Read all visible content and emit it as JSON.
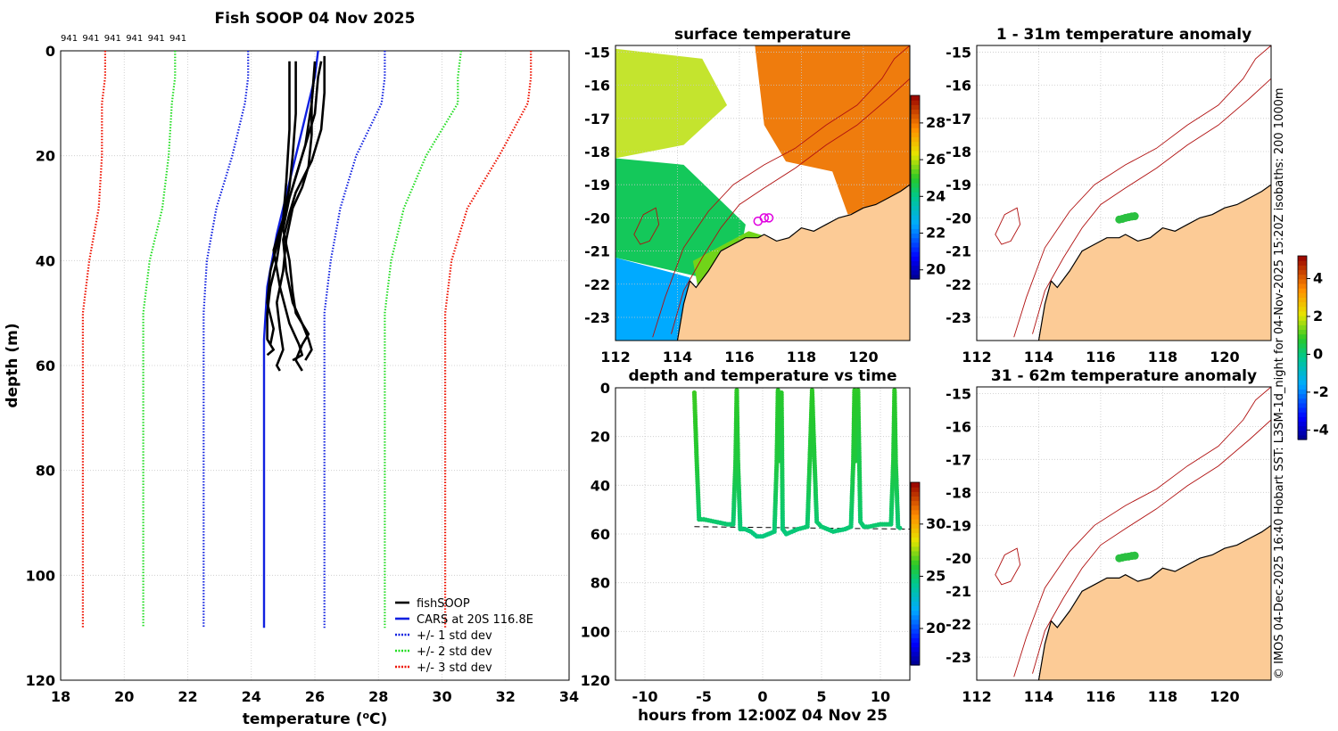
{
  "figure": {
    "credit": "© IMOS 04-Dec-2025 16:40 Hobart SST: L3SM-1d_night for 04-Nov-2025 15:20Z isobaths: 200  1000m"
  },
  "colors": {
    "land": "#fccb96",
    "coast": "#000000",
    "isobath": "#b01010",
    "grid": "#c8c8c8",
    "fishsoop": "#000000",
    "cars": "#1020e0",
    "std1": "#1020e0",
    "std2": "#22dd22",
    "std3": "#ee1100",
    "track": "#2ac040",
    "no_data": "#ffffff"
  },
  "chart_data": [
    {
      "id": "profile",
      "type": "line",
      "title": "Fish SOOP 04 Nov 2025",
      "xlabel": "temperature (°C)",
      "ylabel": "depth (m)",
      "xlim": [
        18,
        34
      ],
      "ylim": [
        0,
        120
      ],
      "y_reversed": true,
      "xticks": [
        18,
        20,
        22,
        24,
        26,
        28,
        30,
        32,
        34
      ],
      "yticks": [
        0,
        20,
        40,
        60,
        80,
        100,
        120
      ],
      "grid": true,
      "top_labels": [
        "941",
        "941",
        "941",
        "941",
        "941",
        "941"
      ],
      "legend_position": "bottom-right",
      "series": [
        {
          "name": "fishSOOP",
          "style": "solid",
          "color_key": "fishsoop",
          "casts": [
            {
              "temp": [
                25.2,
                25.2,
                25.1,
                25.0,
                24.8,
                24.6,
                24.5,
                24.5,
                24.6,
                24.7,
                24.5
              ],
              "depth": [
                2,
                15,
                25,
                32,
                40,
                45,
                50,
                55,
                56,
                57,
                58
              ]
            },
            {
              "temp": [
                25.4,
                25.4,
                25.3,
                25.2,
                25.0,
                24.7,
                24.9,
                25.2,
                25.5,
                25.6,
                25.3
              ],
              "depth": [
                2,
                12,
                20,
                26,
                32,
                38,
                45,
                52,
                56,
                58,
                59
              ]
            },
            {
              "temp": [
                26.0,
                25.9,
                25.9,
                25.8,
                25.6,
                25.3,
                25.1,
                25.0,
                24.8,
                24.9,
                25.0,
                24.8,
                24.9
              ],
              "depth": [
                2,
                10,
                16,
                22,
                26,
                30,
                36,
                42,
                48,
                53,
                57,
                60,
                61
              ]
            },
            {
              "temp": [
                26.2,
                26.1,
                26.0,
                25.5,
                25.2,
                25.0,
                25.2,
                25.3,
                25.4,
                25.8,
                25.6,
                25.4,
                25.6
              ],
              "depth": [
                2,
                5,
                12,
                22,
                28,
                34,
                40,
                46,
                50,
                54,
                56,
                59,
                61
              ]
            },
            {
              "temp": [
                26.3,
                26.3,
                26.2,
                25.9,
                25.4,
                25.2,
                25.0,
                25.1,
                25.3,
                25.6,
                25.8,
                25.9,
                25.7
              ],
              "depth": [
                1,
                8,
                15,
                21,
                27,
                31,
                36,
                42,
                48,
                52,
                55,
                57,
                59
              ]
            },
            {
              "temp": [
                26.0,
                25.9,
                25.7,
                25.4,
                25.1,
                24.9,
                24.6,
                24.5,
                24.7,
                24.6
              ],
              "depth": [
                3,
                10,
                18,
                24,
                30,
                35,
                42,
                48,
                53,
                56
              ]
            }
          ]
        },
        {
          "name": "CARS at 20S 116.8E",
          "style": "solid",
          "color_key": "cars",
          "temp": [
            26.1,
            26.0,
            25.6,
            25.2,
            24.8,
            24.5,
            24.4,
            24.4,
            24.4
          ],
          "depth": [
            0,
            5,
            15,
            25,
            35,
            45,
            55,
            60,
            110
          ]
        },
        {
          "name": "+/- 1 std dev",
          "style": "dotted",
          "color_key": "std1",
          "low": {
            "temp": [
              23.9,
              23.9,
              23.8,
              23.4,
              22.9,
              22.6,
              22.5,
              22.5,
              22.5
            ],
            "depth": [
              0,
              5,
              10,
              20,
              30,
              40,
              50,
              60,
              110
            ]
          },
          "high": {
            "temp": [
              28.2,
              28.2,
              28.1,
              27.3,
              26.8,
              26.5,
              26.3,
              26.3,
              26.3
            ],
            "depth": [
              0,
              5,
              10,
              20,
              30,
              40,
              50,
              60,
              110
            ]
          }
        },
        {
          "name": "+/- 2 std dev",
          "style": "dotted",
          "color_key": "std2",
          "low": {
            "temp": [
              21.6,
              21.6,
              21.5,
              21.4,
              21.2,
              20.8,
              20.6,
              20.6,
              20.6
            ],
            "depth": [
              0,
              5,
              10,
              20,
              30,
              40,
              50,
              60,
              110
            ]
          },
          "high": {
            "temp": [
              30.6,
              30.5,
              30.5,
              29.5,
              28.8,
              28.4,
              28.2,
              28.2,
              28.2
            ],
            "depth": [
              0,
              5,
              10,
              20,
              30,
              40,
              50,
              60,
              110
            ]
          }
        },
        {
          "name": "+/- 3 std dev",
          "style": "dotted",
          "color_key": "std3",
          "low": {
            "temp": [
              19.4,
              19.4,
              19.3,
              19.3,
              19.2,
              18.9,
              18.7,
              18.7,
              18.7
            ],
            "depth": [
              0,
              5,
              10,
              20,
              30,
              40,
              50,
              60,
              110
            ]
          },
          "high": {
            "temp": [
              32.8,
              32.8,
              32.7,
              31.8,
              30.8,
              30.3,
              30.1,
              30.1,
              30.1
            ],
            "depth": [
              0,
              5,
              10,
              20,
              30,
              40,
              50,
              60,
              110
            ]
          }
        }
      ]
    },
    {
      "id": "sst-map",
      "type": "heatmap",
      "title": "surface temperature",
      "xlim": [
        112,
        121.5
      ],
      "ylim": [
        -23.7,
        -14.8
      ],
      "xticks": [
        112,
        114,
        116,
        118,
        120
      ],
      "yticks": [
        -15,
        -16,
        -17,
        -18,
        -19,
        -20,
        -21,
        -22,
        -23
      ],
      "colorbar": {
        "min": 19.5,
        "max": 29.5,
        "ticks": [
          20,
          22,
          24,
          26,
          28
        ]
      },
      "sst_regions": [
        {
          "name": "north-east warm",
          "value": 28.0
        },
        {
          "name": "north-west",
          "value": 26.0
        },
        {
          "name": "south-west",
          "value": 24.5
        },
        {
          "name": "coastal shelf",
          "value": 25.5
        },
        {
          "name": "far south-west",
          "value": 22.5
        }
      ],
      "cast_markers": [
        {
          "lon": 116.6,
          "lat": -20.1
        },
        {
          "lon": 116.8,
          "lat": -20.0
        },
        {
          "lon": 116.95,
          "lat": -20.0
        }
      ]
    },
    {
      "id": "time-series",
      "type": "scatter",
      "title": "depth and temperature vs time",
      "xlabel": "hours from 12:00Z 04 Nov 25",
      "xlim": [
        -12.5,
        12.5
      ],
      "ylim": [
        0,
        120
      ],
      "y_reversed": true,
      "xticks": [
        -10,
        -5,
        0,
        5,
        10
      ],
      "yticks": [
        0,
        20,
        40,
        60,
        80,
        100,
        120
      ],
      "colorbar": {
        "min": 16.5,
        "max": 34,
        "ticks": [
          20,
          25,
          30
        ]
      },
      "bottom_depth_line": {
        "x": [
          -5.8,
          12.5
        ],
        "depth": [
          57,
          58
        ]
      },
      "track": {
        "hours": [
          -5.8,
          -5.6,
          -5.4,
          -5.0,
          -4.0,
          -3.0,
          -2.5,
          -2.3,
          -2.2,
          -2.1,
          -1.9,
          -1.5,
          -1.0,
          -0.5,
          0.0,
          0.5,
          1.0,
          1.2,
          1.3,
          1.5,
          1.6,
          1.7,
          2.0,
          3.0,
          3.8,
          4.0,
          4.2,
          4.4,
          4.6,
          5.0,
          6.0,
          7.0,
          7.5,
          7.7,
          7.8,
          7.9,
          8.1,
          8.3,
          8.6,
          9.0,
          10.0,
          10.9,
          11.1,
          11.2,
          11.3,
          11.5,
          11.8
        ],
        "depth": [
          2,
          30,
          54,
          54,
          55,
          56,
          56,
          30,
          1,
          30,
          58,
          58,
          59,
          61,
          61,
          60,
          59,
          30,
          1,
          30,
          2,
          58,
          60,
          58,
          57,
          30,
          1,
          30,
          55,
          57,
          59,
          58,
          57,
          30,
          1,
          30,
          1,
          55,
          57,
          57,
          56,
          56,
          30,
          1,
          30,
          57,
          58
        ],
        "temp": [
          26.5,
          26.0,
          25.0,
          25.0,
          24.9,
          24.8,
          24.8,
          25.8,
          26.3,
          25.8,
          24.7,
          24.7,
          24.6,
          24.5,
          24.5,
          24.6,
          24.7,
          25.8,
          26.2,
          25.8,
          26.2,
          24.7,
          24.6,
          24.7,
          24.8,
          25.8,
          26.3,
          25.8,
          24.9,
          24.8,
          24.7,
          24.7,
          24.8,
          25.8,
          26.3,
          25.8,
          26.3,
          24.9,
          24.8,
          24.8,
          24.9,
          24.9,
          25.8,
          26.3,
          25.8,
          24.8,
          24.7
        ]
      }
    },
    {
      "id": "anomaly-shallow",
      "type": "scatter",
      "title": "1 - 31m temperature anomaly",
      "xlim": [
        112,
        121.5
      ],
      "ylim": [
        -23.7,
        -14.8
      ],
      "xticks": [
        112,
        114,
        116,
        118,
        120
      ],
      "yticks": [
        -15,
        -16,
        -17,
        -18,
        -19,
        -20,
        -21,
        -22,
        -23
      ],
      "points": {
        "lon": [
          116.6,
          116.7,
          116.8,
          116.9,
          117.0,
          117.1
        ],
        "lat": [
          -20.05,
          -20.03,
          -20.0,
          -19.98,
          -19.96,
          -19.95
        ],
        "anomaly": [
          0.2,
          0.3,
          0.3,
          0.2,
          0.3,
          0.2
        ]
      }
    },
    {
      "id": "anomaly-deep",
      "type": "scatter",
      "title": "31 - 62m temperature anomaly",
      "xlim": [
        112,
        121.5
      ],
      "ylim": [
        -23.7,
        -14.8
      ],
      "xticks": [
        112,
        114,
        116,
        118,
        120
      ],
      "yticks": [
        -15,
        -16,
        -17,
        -18,
        -19,
        -20,
        -21,
        -22,
        -23
      ],
      "colorbar": {
        "min": -4.5,
        "max": 5.2,
        "ticks": [
          -4,
          -2,
          0,
          2,
          4
        ]
      },
      "points": {
        "lon": [
          116.6,
          116.7,
          116.8,
          116.9,
          117.0,
          117.1
        ],
        "lat": [
          -20.0,
          -19.98,
          -19.96,
          -19.95,
          -19.93,
          -19.92
        ],
        "anomaly": [
          0.2,
          0.1,
          0.2,
          0.3,
          0.2,
          0.2
        ]
      }
    }
  ],
  "map_features": {
    "coast": {
      "lon": [
        114.0,
        114.2,
        114.4,
        114.6,
        115.0,
        115.4,
        115.8,
        116.2,
        116.6,
        116.8,
        117.2,
        117.6,
        118.0,
        118.4,
        118.8,
        119.2,
        119.6,
        120.0,
        120.4,
        120.8,
        121.2,
        121.5
      ],
      "lat": [
        -23.7,
        -22.6,
        -21.9,
        -22.1,
        -21.6,
        -21.0,
        -20.8,
        -20.6,
        -20.6,
        -20.5,
        -20.7,
        -20.6,
        -20.3,
        -20.4,
        -20.2,
        -20.0,
        -19.9,
        -19.7,
        -19.6,
        -19.4,
        -19.2,
        -19.0
      ]
    },
    "isobath_200": {
      "lon": [
        113.8,
        114.2,
        114.8,
        115.4,
        116.0,
        116.8,
        117.8,
        118.8,
        119.8,
        120.8,
        121.5
      ],
      "lat": [
        -23.5,
        -22.2,
        -21.2,
        -20.3,
        -19.6,
        -19.1,
        -18.5,
        -17.8,
        -17.2,
        -16.4,
        -15.8
      ]
    },
    "isobath_1000": {
      "lon": [
        113.2,
        113.6,
        114.2,
        115.0,
        115.8,
        116.8,
        117.8,
        118.8,
        119.8,
        120.6,
        121.0,
        121.5
      ],
      "lat": [
        -23.6,
        -22.4,
        -20.9,
        -19.8,
        -19.0,
        -18.4,
        -17.9,
        -17.2,
        -16.6,
        -15.8,
        -15.2,
        -14.8
      ]
    },
    "plateau": {
      "lon": [
        112.6,
        112.9,
        113.3,
        113.4,
        113.1,
        112.8,
        112.6
      ],
      "lat": [
        -20.5,
        -19.9,
        -19.7,
        -20.2,
        -20.7,
        -20.8,
        -20.5
      ]
    }
  }
}
